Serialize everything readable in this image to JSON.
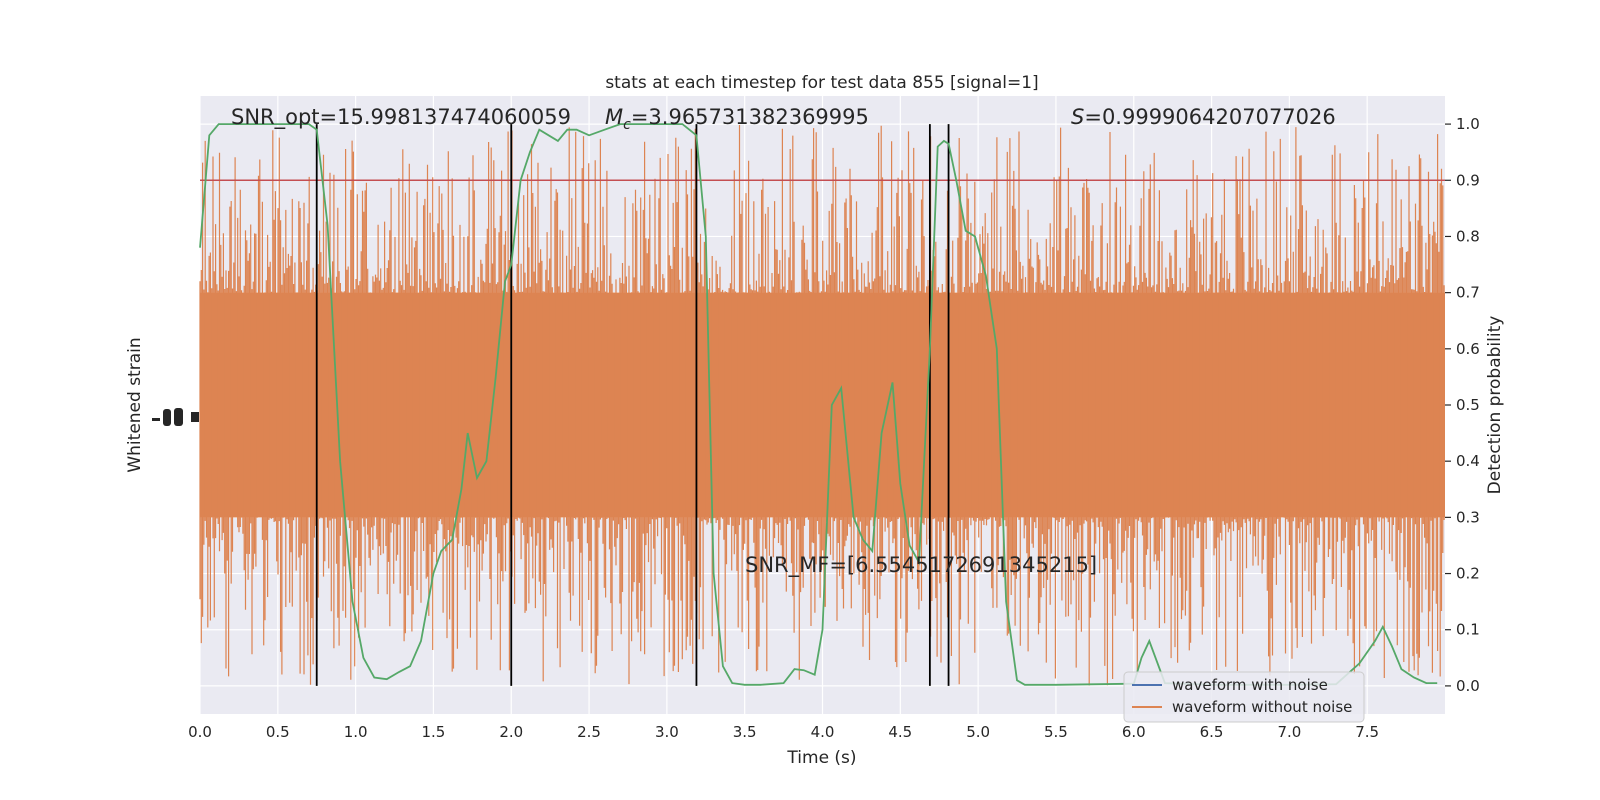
{
  "chart_data": {
    "type": "line",
    "title": "stats at each timestep for test data 855 [signal=1]",
    "xlabel": "Time (s)",
    "ylabel_left": "Whitened strain",
    "ylabel_right": "Detection probability",
    "xlim": [
      0,
      8
    ],
    "ylim_right": [
      -0.05,
      1.05
    ],
    "x_ticks": [
      "0.0",
      "0.5",
      "1.0",
      "1.5",
      "2.0",
      "2.5",
      "3.0",
      "3.5",
      "4.0",
      "4.5",
      "5.0",
      "5.5",
      "6.0",
      "6.5",
      "7.0",
      "7.5"
    ],
    "y_ticks_right": [
      "0.0",
      "0.1",
      "0.2",
      "0.3",
      "0.4",
      "0.5",
      "0.6",
      "0.7",
      "0.8",
      "0.9",
      "1.0"
    ],
    "grid": true,
    "legend": {
      "placement": "lower-right",
      "entries": [
        {
          "label": "waveform with noise",
          "color": "#4c72b0"
        },
        {
          "label": "waveform without noise",
          "color": "#dd8452"
        }
      ]
    },
    "annotations": {
      "snr_opt": "SNR_opt=15.998137474060059",
      "mc_symbol": "M",
      "mc_sub": "c",
      "mc_value": "=3.965731382369995",
      "s_symbol": "S",
      "s_value": "=0.9999064207077026",
      "snr_mf": "SNR_MF=[6.554517269134521​5]"
    },
    "threshold": 0.9,
    "vertical_lines_x": [
      0.75,
      2.0,
      3.19,
      4.69,
      4.81
    ],
    "noise_band": {
      "core_low": 0.3,
      "core_high": 0.7,
      "peak_high": 1.0,
      "peak_low": 0.0
    },
    "detection_probability": {
      "x": [
        0.0,
        0.06,
        0.12,
        0.25,
        0.4,
        0.55,
        0.7,
        0.75,
        0.82,
        0.9,
        0.98,
        1.05,
        1.12,
        1.2,
        1.28,
        1.35,
        1.42,
        1.5,
        1.55,
        1.62,
        1.68,
        1.72,
        1.78,
        1.84,
        1.9,
        1.96,
        2.0,
        2.06,
        2.12,
        2.18,
        2.24,
        2.3,
        2.36,
        2.42,
        2.5,
        2.6,
        2.7,
        2.8,
        2.9,
        3.0,
        3.1,
        3.19,
        3.25,
        3.3,
        3.36,
        3.42,
        3.5,
        3.6,
        3.75,
        3.82,
        3.88,
        3.95,
        4.0,
        4.06,
        4.12,
        4.2,
        4.26,
        4.32,
        4.38,
        4.45,
        4.5,
        4.56,
        4.62,
        4.69,
        4.74,
        4.78,
        4.81,
        4.86,
        4.92,
        4.98,
        5.05,
        5.12,
        5.18,
        5.25,
        5.3,
        5.5,
        6.0,
        6.05,
        6.1,
        6.2,
        6.5,
        7.0,
        7.3,
        7.45,
        7.55,
        7.6,
        7.66,
        7.72,
        7.8,
        7.88,
        7.95
      ],
      "y": [
        0.78,
        0.98,
        1.0,
        1.0,
        1.0,
        1.0,
        1.0,
        0.99,
        0.82,
        0.4,
        0.15,
        0.05,
        0.015,
        0.012,
        0.025,
        0.035,
        0.08,
        0.2,
        0.24,
        0.26,
        0.35,
        0.45,
        0.37,
        0.4,
        0.55,
        0.72,
        0.75,
        0.9,
        0.95,
        0.99,
        0.98,
        0.97,
        0.99,
        0.99,
        0.98,
        0.99,
        1.0,
        1.0,
        1.0,
        1.0,
        1.0,
        0.98,
        0.8,
        0.2,
        0.035,
        0.005,
        0.002,
        0.002,
        0.005,
        0.03,
        0.028,
        0.02,
        0.1,
        0.5,
        0.53,
        0.3,
        0.26,
        0.24,
        0.45,
        0.54,
        0.36,
        0.25,
        0.22,
        0.6,
        0.96,
        0.97,
        0.965,
        0.9,
        0.81,
        0.8,
        0.73,
        0.6,
        0.15,
        0.01,
        0.002,
        0.002,
        0.004,
        0.05,
        0.08,
        0.005,
        0.002,
        0.002,
        0.003,
        0.04,
        0.08,
        0.105,
        0.07,
        0.03,
        0.015,
        0.005,
        0.005
      ]
    }
  }
}
